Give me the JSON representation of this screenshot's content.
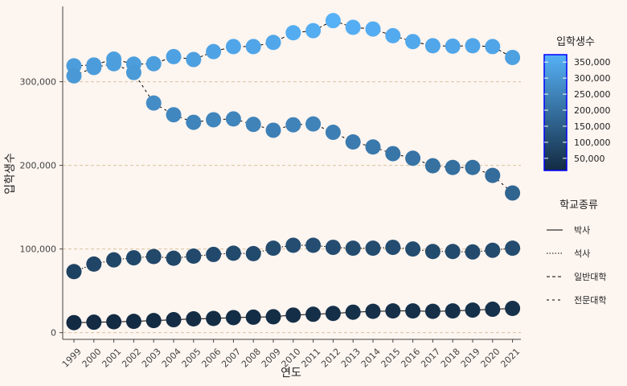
{
  "chart_data": {
    "type": "scatter",
    "xlabel": "연도",
    "ylabel": "입학생수",
    "x": [
      "1999",
      "2000",
      "2001",
      "2002",
      "2003",
      "2004",
      "2005",
      "2006",
      "2007",
      "2008",
      "2009",
      "2010",
      "2011",
      "2012",
      "2013",
      "2014",
      "2015",
      "2016",
      "2017",
      "2018",
      "2019",
      "2020",
      "2021"
    ],
    "ylim": [
      -8000,
      390000
    ],
    "y_ticks": [
      0,
      100000,
      200000,
      300000
    ],
    "y_tick_labels": [
      "0",
      "100,000",
      "200,000",
      "300,000"
    ],
    "grid": "horizontal dashed",
    "series": [
      {
        "name": "박사",
        "line_style": "solid",
        "values": [
          12000,
          12500,
          13000,
          13500,
          14500,
          15500,
          16500,
          17000,
          18000,
          18500,
          19000,
          21000,
          22000,
          23000,
          24500,
          25500,
          26000,
          26000,
          25500,
          26000,
          27000,
          28000,
          29000
        ]
      },
      {
        "name": "석사",
        "line_style": "dotted",
        "values": [
          73000,
          82000,
          87000,
          89500,
          91000,
          89000,
          91500,
          93500,
          95000,
          94500,
          101000,
          104500,
          104500,
          102000,
          101000,
          101000,
          102000,
          100000,
          97000,
          97000,
          96500,
          98500,
          101000
        ]
      },
      {
        "name": "일반대학",
        "line_style": "dashed",
        "values": [
          319000,
          320000,
          327000,
          321000,
          321500,
          330000,
          326500,
          336000,
          342000,
          342000,
          347000,
          358500,
          361000,
          373000,
          365000,
          363000,
          355000,
          348000,
          343000,
          342500,
          343000,
          342000,
          329000
        ]
      },
      {
        "name": "전문대학",
        "line_style": "loosely dashed",
        "values": [
          307000,
          317000,
          321500,
          311000,
          274500,
          260500,
          251500,
          254500,
          255500,
          249000,
          242000,
          248500,
          249500,
          239500,
          228000,
          222000,
          214000,
          208500,
          199500,
          197500,
          197500,
          188000,
          167000
        ]
      }
    ],
    "color_legend": {
      "title": "입학생수",
      "ticks": [
        50000,
        100000,
        150000,
        200000,
        250000,
        300000,
        350000
      ],
      "tick_labels": [
        "50,000",
        "100,000",
        "150,000",
        "200,000",
        "250,000",
        "300,000",
        "350,000"
      ],
      "range": [
        12000,
        373000
      ],
      "color_low": "#132b43",
      "color_high": "#56b1f7",
      "border_color": "#0000ff"
    },
    "linetype_legend": {
      "title": "학교종류",
      "entries": [
        "박사",
        "석사",
        "일반대학",
        "전문대학"
      ]
    },
    "background": "#fdf5f0",
    "gridline_color": "#d9c3a0"
  }
}
